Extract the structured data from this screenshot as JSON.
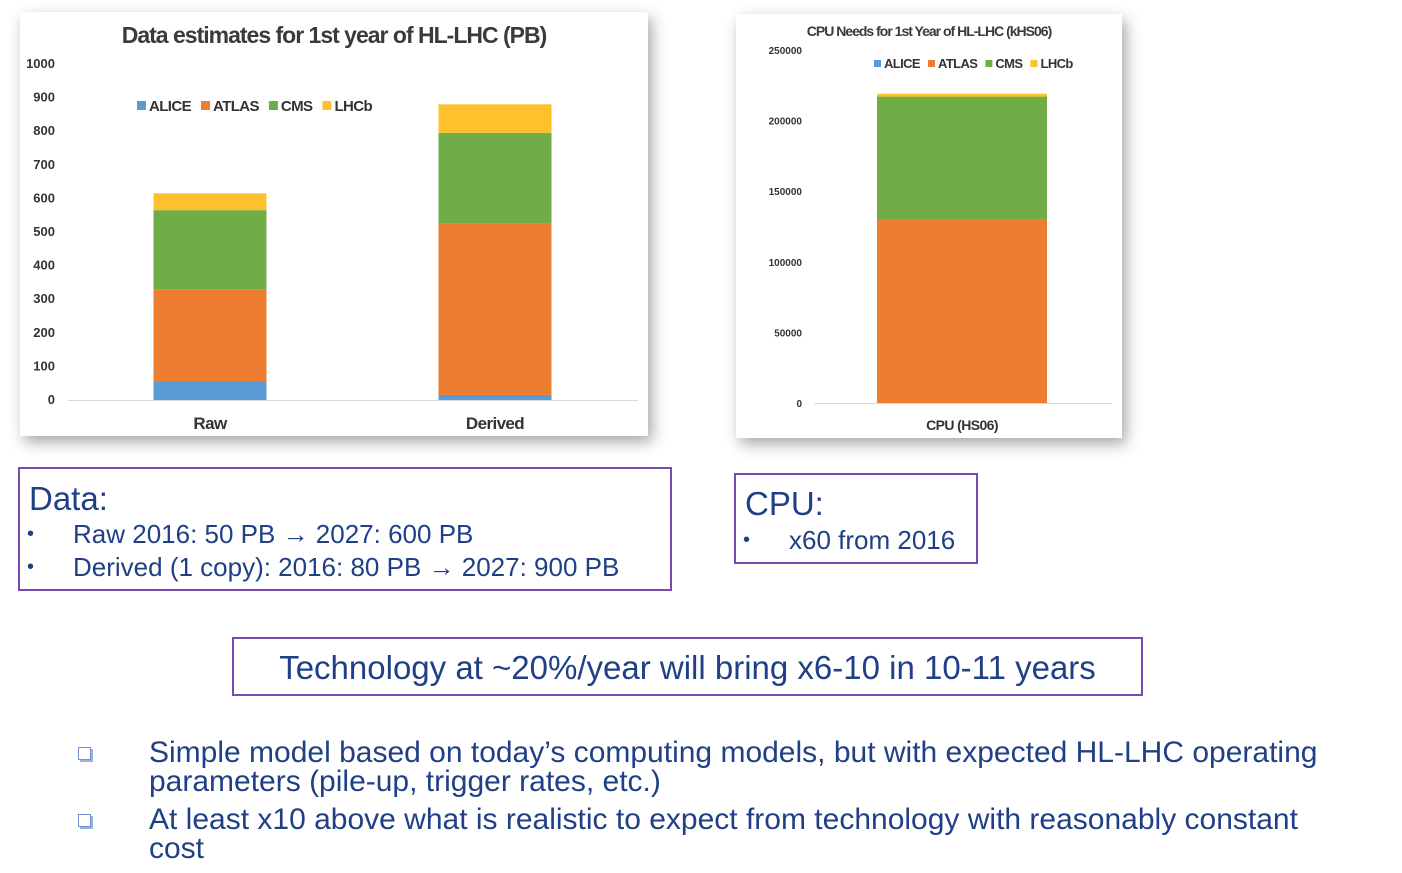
{
  "chart_data": [
    {
      "type": "bar",
      "stacked": true,
      "title": "Data estimates for 1st year of HL-LHC (PB)",
      "categories": [
        "Raw",
        "Derived"
      ],
      "series": [
        {
          "name": "ALICE",
          "color": "#5b9bd5",
          "values": [
            55,
            15
          ]
        },
        {
          "name": "ATLAS",
          "color": "#ed7d31",
          "values": [
            275,
            510
          ]
        },
        {
          "name": "CMS",
          "color": "#70ad47",
          "values": [
            235,
            270
          ]
        },
        {
          "name": "LHCb",
          "color": "#ffc02d",
          "values": [
            50,
            85
          ]
        }
      ],
      "ylim": [
        0,
        1000
      ],
      "yticks": [
        "0",
        "100",
        "200",
        "300",
        "400",
        "500",
        "600",
        "700",
        "800",
        "900",
        "1000"
      ],
      "legend_position": "top",
      "grid": false
    },
    {
      "type": "bar",
      "stacked": true,
      "title": "CPU Needs for 1st Year of HL-LHC (kHS06)",
      "categories": [
        "CPU (HS06)"
      ],
      "series": [
        {
          "name": "ALICE",
          "color": "#5b9bd5",
          "values": [
            0
          ]
        },
        {
          "name": "ATLAS",
          "color": "#ed7d31",
          "values": [
            130000
          ]
        },
        {
          "name": "CMS",
          "color": "#70ad47",
          "values": [
            87000
          ]
        },
        {
          "name": "LHCb",
          "color": "#ffc02d",
          "values": [
            2000
          ]
        }
      ],
      "ylim": [
        0,
        250000
      ],
      "yticks": [
        "0",
        "50000",
        "100000",
        "150000",
        "200000",
        "250000"
      ],
      "legend_position": "top-right",
      "grid": false
    }
  ],
  "data_box": {
    "heading": "Data:",
    "bullets": [
      "Raw 2016: 50 PB → 2027: 600 PB",
      "Derived (1 copy): 2016: 80 PB → 2027: 900 PB"
    ]
  },
  "cpu_box": {
    "heading": "CPU:",
    "bullets": [
      "x60 from 2016"
    ]
  },
  "tech_statement": "Technology at ~20%/year will bring x6-10 in 10-11 years",
  "notes": [
    "Simple model based on today’s computing models, but with expected HL-LHC operating parameters (pile-up, trigger rates, etc.)",
    "At least x10 above what is realistic to expect from technology with reasonably constant cost"
  ],
  "bullet_symbol": "•"
}
